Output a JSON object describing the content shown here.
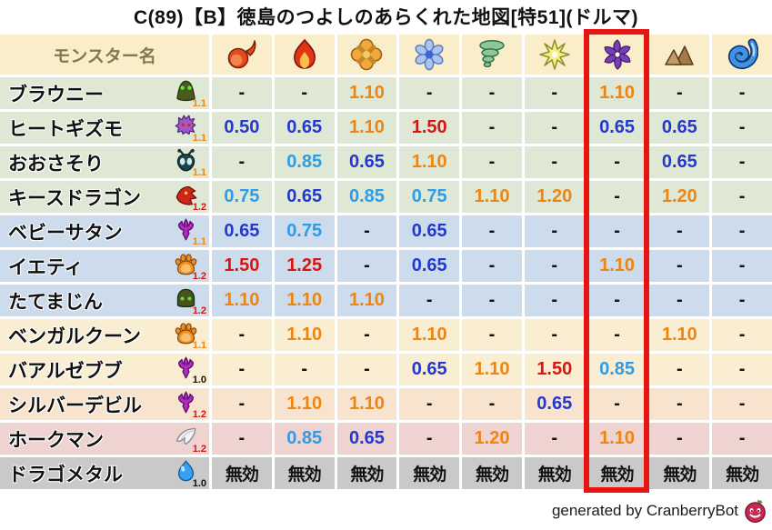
{
  "title": "C(89)【B】徳島のつよしのあらくれた地図[特51](ドルマ)",
  "footer": {
    "credit": "generated by CranberryBot",
    "icon": "cranberry-bot-icon"
  },
  "palette": {
    "header_bg": "#f9edca",
    "header_label_color": "#81784e",
    "grid_gap": "#ffffff",
    "highlight_box": "#e81411",
    "value_colors": {
      "-": "#111111",
      "無効": "#111111",
      "0.50": "#2438cf",
      "0.65": "#2438cf",
      "0.75": "#2e9ce9",
      "0.85": "#2e9ce9",
      "1.10": "#ef8511",
      "1.20": "#ef8511",
      "1.25": "#da150f",
      "1.50": "#da150f"
    },
    "row_colors": {
      "green": "#dee8d5",
      "blue": "#ccdcec",
      "cream": "#f9edd2",
      "peach": "#f8e4ce",
      "pink": "#eed3d1",
      "gray": "#c9c9c9"
    },
    "multiplier_colors": {
      "orange": "#ef8511",
      "red": "#da150f",
      "black": "#111111"
    }
  },
  "chart_data": {
    "type": "table",
    "title": "C(89)【B】徳島のつよしのあらくれた地図[特51](ドルマ)",
    "monster_col_label": "モンスター名",
    "element_columns": [
      {
        "element": "fire",
        "icon": "fireball-icon"
      },
      {
        "element": "blaze",
        "icon": "flame-icon"
      },
      {
        "element": "bang",
        "icon": "bang-icon"
      },
      {
        "element": "ice",
        "icon": "snowflake-icon"
      },
      {
        "element": "wind",
        "icon": "tornado-icon"
      },
      {
        "element": "light",
        "icon": "light-star-icon"
      },
      {
        "element": "dark-dolma",
        "icon": "dark-pinwheel-icon",
        "highlighted": true
      },
      {
        "element": "earth",
        "icon": "mountain-icon"
      },
      {
        "element": "wave",
        "icon": "wave-icon"
      }
    ],
    "highlighted_column_index": 7,
    "immune_label": "無効",
    "rows": [
      {
        "name": "ブラウニー",
        "family_icon": "green-blob-icon",
        "multiplier": "1.1",
        "multiplier_color": "orange",
        "row_color": "green",
        "values": [
          "-",
          "-",
          "1.10",
          "-",
          "-",
          "-",
          "1.10",
          "-",
          "-"
        ]
      },
      {
        "name": "ヒートギズモ",
        "family_icon": "purple-ghost-icon",
        "multiplier": "1.1",
        "multiplier_color": "orange",
        "row_color": "green",
        "values": [
          "0.50",
          "0.65",
          "1.10",
          "1.50",
          "-",
          "-",
          "0.65",
          "0.65",
          "-"
        ]
      },
      {
        "name": "おおさそり",
        "family_icon": "bug-icon",
        "multiplier": "1.1",
        "multiplier_color": "orange",
        "row_color": "green",
        "values": [
          "-",
          "0.85",
          "0.65",
          "1.10",
          "-",
          "-",
          "-",
          "0.65",
          "-"
        ]
      },
      {
        "name": "キースドラゴン",
        "family_icon": "dragon-icon",
        "multiplier": "1.2",
        "multiplier_color": "red",
        "row_color": "green",
        "values": [
          "0.75",
          "0.65",
          "0.85",
          "0.75",
          "1.10",
          "1.20",
          "-",
          "1.20",
          "-"
        ]
      },
      {
        "name": "ベビーサタン",
        "family_icon": "devil-trident-icon",
        "multiplier": "1.1",
        "multiplier_color": "orange",
        "row_color": "blue",
        "values": [
          "0.65",
          "0.75",
          "-",
          "0.65",
          "-",
          "-",
          "-",
          "-",
          "-"
        ]
      },
      {
        "name": "イエティ",
        "family_icon": "paw-icon",
        "multiplier": "1.2",
        "multiplier_color": "red",
        "row_color": "blue",
        "values": [
          "1.50",
          "1.25",
          "-",
          "0.65",
          "-",
          "-",
          "1.10",
          "-",
          "-"
        ]
      },
      {
        "name": "たてまじん",
        "family_icon": "helmet-icon",
        "multiplier": "1.2",
        "multiplier_color": "red",
        "row_color": "blue",
        "values": [
          "1.10",
          "1.10",
          "1.10",
          "-",
          "-",
          "-",
          "-",
          "-",
          "-"
        ]
      },
      {
        "name": "ベンガルクーン",
        "family_icon": "paw-icon",
        "multiplier": "1.1",
        "multiplier_color": "orange",
        "row_color": "cream",
        "values": [
          "-",
          "1.10",
          "-",
          "1.10",
          "-",
          "-",
          "-",
          "1.10",
          "-"
        ]
      },
      {
        "name": "バアルゼブブ",
        "family_icon": "devil-trident-icon",
        "multiplier": "1.0",
        "multiplier_color": "black",
        "row_color": "cream",
        "values": [
          "-",
          "-",
          "-",
          "0.65",
          "1.10",
          "1.50",
          "0.85",
          "-",
          "-"
        ]
      },
      {
        "name": "シルバーデビル",
        "family_icon": "devil-trident-icon",
        "multiplier": "1.2",
        "multiplier_color": "red",
        "row_color": "peach",
        "values": [
          "-",
          "1.10",
          "1.10",
          "-",
          "-",
          "0.65",
          "-",
          "-",
          "-"
        ]
      },
      {
        "name": "ホークマン",
        "family_icon": "wing-icon",
        "multiplier": "1.2",
        "multiplier_color": "red",
        "row_color": "pink",
        "values": [
          "-",
          "0.85",
          "0.65",
          "-",
          "1.20",
          "-",
          "1.10",
          "-",
          "-"
        ]
      },
      {
        "name": "ドラゴメタル",
        "family_icon": "slime-icon",
        "multiplier": "1.0",
        "multiplier_color": "black",
        "row_color": "gray",
        "values": [
          "無効",
          "無効",
          "無効",
          "無効",
          "無効",
          "無効",
          "無効",
          "無効",
          "無効"
        ]
      }
    ]
  }
}
